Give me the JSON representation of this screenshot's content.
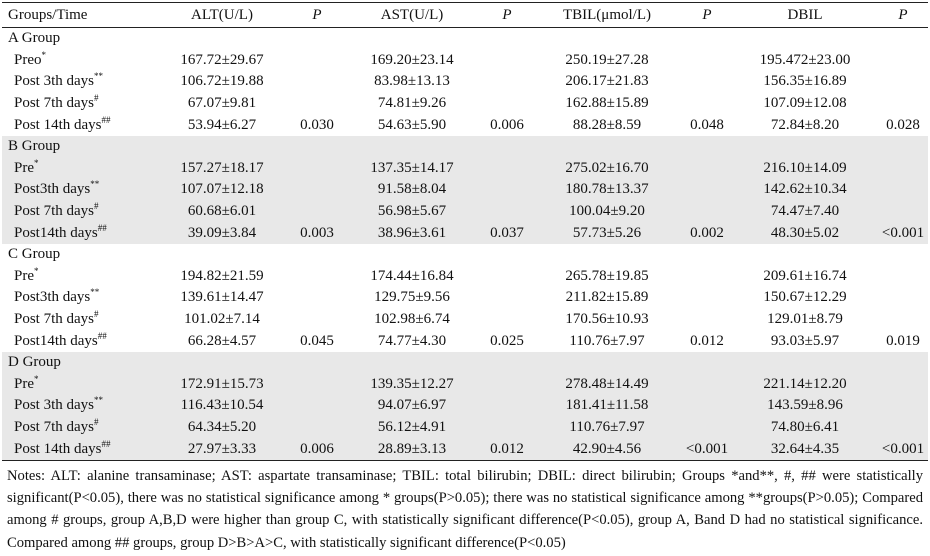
{
  "headers": [
    "Groups/Time",
    "ALT(U/L)",
    "P",
    "AST(U/L)",
    "P",
    "TBIL(μmol/L)",
    "P",
    "DBIL",
    "P"
  ],
  "groups": [
    {
      "name": "A Group",
      "shade": false,
      "rows": [
        {
          "label": "Preo",
          "mark": "*",
          "vals": [
            "167.72±29.67",
            "",
            "169.20±23.14",
            "",
            "250.19±27.28",
            "",
            "195.472±23.00",
            ""
          ]
        },
        {
          "label": "Post 3th days",
          "mark": "**",
          "vals": [
            "106.72±19.88",
            "",
            "83.98±13.13",
            "",
            "206.17±21.83",
            "",
            "156.35±16.89",
            ""
          ]
        },
        {
          "label": "Post 7th days",
          "mark": "#",
          "vals": [
            "67.07±9.81",
            "",
            "74.81±9.26",
            "",
            "162.88±15.89",
            "",
            "107.09±12.08",
            ""
          ]
        },
        {
          "label": "Post 14th days",
          "mark": "##",
          "vals": [
            "53.94±6.27",
            "0.030",
            "54.63±5.90",
            "0.006",
            "88.28±8.59",
            "0.048",
            "72.84±8.20",
            "0.028"
          ]
        }
      ]
    },
    {
      "name": "B Group",
      "shade": true,
      "rows": [
        {
          "label": "Pre",
          "mark": "*",
          "vals": [
            "157.27±18.17",
            "",
            "137.35±14.17",
            "",
            "275.02±16.70",
            "",
            "216.10±14.09",
            ""
          ]
        },
        {
          "label": "Post3th days",
          "mark": "**",
          "vals": [
            "107.07±12.18",
            "",
            "91.58±8.04",
            "",
            "180.78±13.37",
            "",
            "142.62±10.34",
            ""
          ]
        },
        {
          "label": "Post 7th days",
          "mark": "#",
          "vals": [
            "60.68±6.01",
            "",
            "56.98±5.67",
            "",
            "100.04±9.20",
            "",
            "74.47±7.40",
            ""
          ]
        },
        {
          "label": "Post14th days",
          "mark": "##",
          "vals": [
            "39.09±3.84",
            "0.003",
            "38.96±3.61",
            "0.037",
            "57.73±5.26",
            "0.002",
            "48.30±5.02",
            "<0.001"
          ]
        }
      ]
    },
    {
      "name": "C Group",
      "shade": false,
      "rows": [
        {
          "label": "Pre",
          "mark": "*",
          "vals": [
            "194.82±21.59",
            "",
            "174.44±16.84",
            "",
            "265.78±19.85",
            "",
            "209.61±16.74",
            ""
          ]
        },
        {
          "label": "Post3th days",
          "mark": "**",
          "vals": [
            "139.61±14.47",
            "",
            "129.75±9.56",
            "",
            "211.82±15.89",
            "",
            "150.67±12.29",
            ""
          ]
        },
        {
          "label": "Post 7th days",
          "mark": "#",
          "vals": [
            "101.02±7.14",
            "",
            "102.98±6.74",
            "",
            "170.56±10.93",
            "",
            "129.01±8.79",
            ""
          ]
        },
        {
          "label": "Post14th days",
          "mark": "##",
          "vals": [
            "66.28±4.57",
            "0.045",
            "74.77±4.30",
            "0.025",
            "110.76±7.97",
            "0.012",
            "93.03±5.97",
            "0.019"
          ]
        }
      ]
    },
    {
      "name": "D Group",
      "shade": true,
      "rows": [
        {
          "label": "Pre",
          "mark": "*",
          "vals": [
            "172.91±15.73",
            "",
            "139.35±12.27",
            "",
            "278.48±14.49",
            "",
            "221.14±12.20",
            ""
          ]
        },
        {
          "label": "Post 3th days",
          "mark": "**",
          "vals": [
            "116.43±10.54",
            "",
            "94.07±6.97",
            "",
            "181.41±11.58",
            "",
            "143.59±8.96",
            ""
          ]
        },
        {
          "label": "Post 7th days",
          "mark": "#",
          "vals": [
            "64.34±5.20",
            "",
            "56.12±4.91",
            "",
            "110.76±7.97",
            "",
            "74.80±6.41",
            ""
          ]
        },
        {
          "label": "Post 14th days",
          "mark": "##",
          "vals": [
            "27.97±3.33",
            "0.006",
            "28.89±3.13",
            "0.012",
            "42.90±4.56",
            "<0.001",
            "32.64±4.35",
            "<0.001"
          ]
        }
      ]
    }
  ],
  "notes": "Notes: ALT: alanine transaminase; AST: aspartate transaminase; TBIL: total bilirubin; DBIL: direct bilirubin; Groups *and**, #, ## were statistically significant(P<0.05), there was no statistical significance among * groups(P>0.05); there was no statistical significance among **groups(P>0.05); Compared among # groups, group A,B,D were higher than group C, with statistically significant difference(P<0.05), group A, Band D had no statistical significance. Compared among ## groups, group D>B>A>C, with statistically significant difference(P<0.05)"
}
